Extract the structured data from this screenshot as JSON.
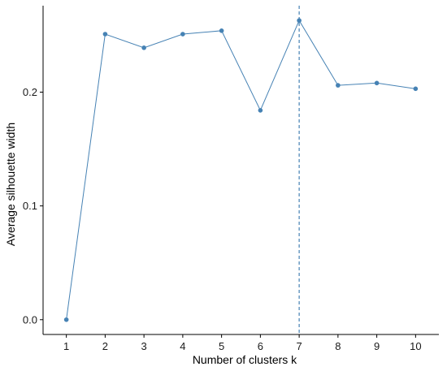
{
  "chart_data": {
    "type": "line",
    "title": "",
    "xlabel": "Number of clusters k",
    "ylabel": "Average silhouette width",
    "x": [
      1,
      2,
      3,
      4,
      5,
      6,
      7,
      8,
      9,
      10
    ],
    "series": [
      {
        "values": [
          0.0,
          0.251,
          0.239,
          0.251,
          0.254,
          0.184,
          0.263,
          0.206,
          0.208,
          0.203
        ]
      }
    ],
    "optimal_k": 7,
    "xticks": [
      "1",
      "2",
      "3",
      "4",
      "5",
      "6",
      "7",
      "8",
      "9",
      "10"
    ],
    "yticks": [
      {
        "value": 0.0,
        "label": "0.0"
      },
      {
        "value": 0.1,
        "label": "0.1"
      },
      {
        "value": 0.2,
        "label": "0.2"
      }
    ],
    "xlim": [
      0.4,
      10.6
    ],
    "ylim": [
      -0.013,
      0.276
    ],
    "grid": false,
    "legend": "none",
    "colors": {
      "line": "#4682B4",
      "point": "#4682B4",
      "vline": "#4682B4",
      "axis": "#000000"
    }
  }
}
